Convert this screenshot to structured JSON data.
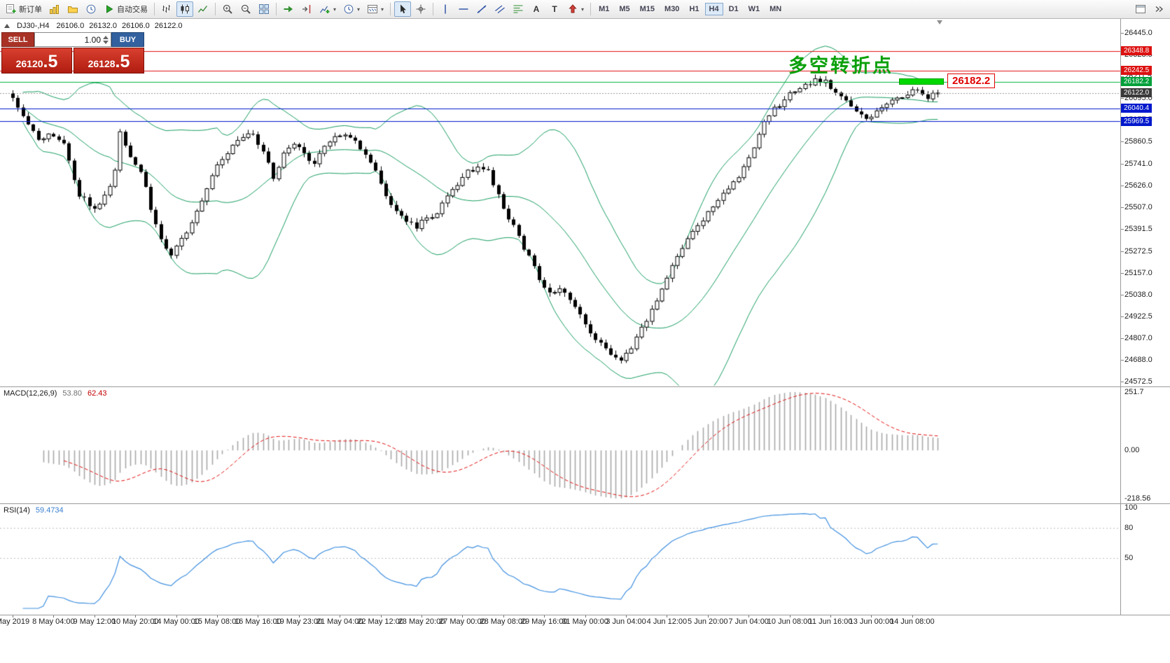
{
  "toolbar": {
    "items": [
      {
        "kind": "button",
        "name": "new-order-button",
        "icon": "neworder",
        "label": "新订单"
      },
      {
        "kind": "icon",
        "name": "new-chart-icon",
        "icon": "newchart"
      },
      {
        "kind": "icon",
        "name": "profiles-icon",
        "icon": "folder"
      },
      {
        "kind": "icon",
        "name": "market-watch-icon",
        "icon": "clock"
      },
      {
        "kind": "button",
        "name": "auto-trading-button",
        "icon": "play",
        "label": "自动交易"
      },
      {
        "kind": "sep"
      },
      {
        "kind": "icon",
        "name": "bar-chart-icon",
        "icon": "ohlcbars"
      },
      {
        "kind": "icon",
        "name": "candlestick-chart-icon",
        "icon": "candles",
        "active": true
      },
      {
        "kind": "icon",
        "name": "line-chart-icon",
        "icon": "linechart"
      },
      {
        "kind": "sep"
      },
      {
        "kind": "icon",
        "name": "zoom-in-icon",
        "icon": "zoomin"
      },
      {
        "kind": "icon",
        "name": "zoom-out-icon",
        "icon": "zoomout"
      },
      {
        "kind": "icon",
        "name": "tile-windows-icon",
        "icon": "tile"
      },
      {
        "kind": "sep"
      },
      {
        "kind": "icon",
        "name": "auto-scroll-icon",
        "icon": "autoscroll"
      },
      {
        "kind": "icon",
        "name": "chart-shift-icon",
        "icon": "chartshift"
      },
      {
        "kind": "icondrop",
        "name": "indicators-icon",
        "icon": "indicator"
      },
      {
        "kind": "icondrop",
        "name": "periods-icon",
        "icon": "clock"
      },
      {
        "kind": "icondrop",
        "name": "templates-icon",
        "icon": "template"
      },
      {
        "kind": "sep"
      },
      {
        "kind": "icon",
        "name": "cursor-icon",
        "icon": "cursor",
        "active": true
      },
      {
        "kind": "icon",
        "name": "crosshair-icon",
        "icon": "crosshair"
      },
      {
        "kind": "sep"
      },
      {
        "kind": "icon",
        "name": "vertical-line-icon",
        "icon": "vline"
      },
      {
        "kind": "icon",
        "name": "horizontal-line-icon",
        "icon": "hline"
      },
      {
        "kind": "icon",
        "name": "trendline-icon",
        "icon": "tline"
      },
      {
        "kind": "icon",
        "name": "channel-icon",
        "icon": "channel"
      },
      {
        "kind": "icon",
        "name": "fibonacci-icon",
        "icon": "fibo"
      },
      {
        "kind": "icon",
        "name": "text-icon",
        "icon": "text",
        "glyph": "A"
      },
      {
        "kind": "icon",
        "name": "label-icon",
        "icon": "text",
        "glyph": "T"
      },
      {
        "kind": "icondrop",
        "name": "arrows-icon",
        "icon": "arrowup"
      },
      {
        "kind": "sep"
      },
      {
        "kind": "tf",
        "name": "timeframe-m1",
        "label": "M1"
      },
      {
        "kind": "tf",
        "name": "timeframe-m5",
        "label": "M5"
      },
      {
        "kind": "tf",
        "name": "timeframe-m15",
        "label": "M15"
      },
      {
        "kind": "tf",
        "name": "timeframe-m30",
        "label": "M30"
      },
      {
        "kind": "tf",
        "name": "timeframe-h1",
        "label": "H1"
      },
      {
        "kind": "tf",
        "name": "timeframe-h4",
        "label": "H4",
        "active": true
      },
      {
        "kind": "tf",
        "name": "timeframe-d1",
        "label": "D1"
      },
      {
        "kind": "tf",
        "name": "timeframe-w1",
        "label": "W1"
      },
      {
        "kind": "tf",
        "name": "timeframe-mn",
        "label": "MN"
      }
    ],
    "right_items": [
      {
        "kind": "icon",
        "name": "dock-windows-icon",
        "icon": "dock"
      },
      {
        "kind": "icon",
        "name": "toolbar-overflow-icon",
        "icon": "more"
      }
    ]
  },
  "chart_header": {
    "symbol": "DJ30-,H4",
    "open": "26106.0",
    "high": "26132.0",
    "low": "26106.0",
    "close": "26122.0"
  },
  "trade_panel": {
    "sell_label": "SELL",
    "buy_label": "BUY",
    "volume": "1.00",
    "sell_price_main": "26120",
    "sell_price_fraction": ".5",
    "buy_price_main": "26128",
    "buy_price_fraction": ".5"
  },
  "annotation": {
    "text": "多空转折点",
    "color": "#0aa00a"
  },
  "price_flag": {
    "text": "26182.2"
  },
  "lines": [
    {
      "name": "resistance-line-upper",
      "label": "26348.8",
      "price": 26348.8,
      "color": "#e01010",
      "badge": "#dd1111",
      "width": 1
    },
    {
      "name": "resistance-line-lower",
      "label": "26242.5",
      "price": 26242.5,
      "color": "#e01010",
      "badge": "#dd1111",
      "width": 1
    },
    {
      "name": "pivot-line-green",
      "label": "26182.2",
      "price": 26182.2,
      "color": "#00b43c",
      "badge": "#00a03a",
      "width": 1
    },
    {
      "name": "current-price-line",
      "label": "26122.0",
      "price": 26122.0,
      "color": "#9a9a9a",
      "badge": "#3a3a3a",
      "width": 1,
      "dash": [
        2,
        2
      ]
    },
    {
      "name": "support-line-upper",
      "label": "26040.4",
      "price": 26040.4,
      "color": "#0018cc",
      "badge": "#0018cc",
      "width": 1
    },
    {
      "name": "support-line-lower",
      "label": "25969.5",
      "price": 25969.5,
      "color": "#0018cc",
      "badge": "#0018cc",
      "width": 1
    }
  ],
  "y_axis_labels": [
    "26445.0",
    "26328.5",
    "26211.5",
    "26095.0",
    "25977.5",
    "25860.5",
    "25741.0",
    "25626.0",
    "25507.0",
    "25391.5",
    "25272.5",
    "25157.0",
    "25038.0",
    "24922.5",
    "24807.0",
    "24688.0",
    "24572.5"
  ],
  "x_axis_labels": [
    {
      "text": "May 2019",
      "i": 0
    },
    {
      "text": "8 May 04:00",
      "i": 8
    },
    {
      "text": "9 May 12:00",
      "i": 16
    },
    {
      "text": "10 May 20:00",
      "i": 24
    },
    {
      "text": "14 May 00:00",
      "i": 32
    },
    {
      "text": "15 May 08:00",
      "i": 40
    },
    {
      "text": "16 May 16:00",
      "i": 48
    },
    {
      "text": "19 May 23:00",
      "i": 56
    },
    {
      "text": "21 May 04:00",
      "i": 64
    },
    {
      "text": "22 May 12:00",
      "i": 72
    },
    {
      "text": "23 May 20:00",
      "i": 80
    },
    {
      "text": "27 May 00:00",
      "i": 88
    },
    {
      "text": "28 May 08:00",
      "i": 96
    },
    {
      "text": "29 May 16:00",
      "i": 104
    },
    {
      "text": "31 May 00:00",
      "i": 112
    },
    {
      "text": "3 Jun 04:00",
      "i": 120
    },
    {
      "text": "4 Jun 12:00",
      "i": 128
    },
    {
      "text": "5 Jun 20:00",
      "i": 136
    },
    {
      "text": "7 Jun 04:00",
      "i": 144
    },
    {
      "text": "10 Jun 08:00",
      "i": 152
    },
    {
      "text": "11 Jun 16:00",
      "i": 160
    },
    {
      "text": "13 Jun 00:00",
      "i": 168
    },
    {
      "text": "14 Jun 08:00",
      "i": 176
    }
  ],
  "macd": {
    "title": "MACD(12,26,9)",
    "value1": "53.80",
    "value2": "62.43",
    "axis_top": "251.7",
    "axis_zero": "0.00",
    "axis_bottom": "-218.56"
  },
  "rsi": {
    "title": "RSI(14)",
    "value": "59.4734",
    "axis": [
      "100",
      "80",
      "50"
    ],
    "levels": [
      80,
      50
    ]
  },
  "colors": {
    "bollinger": "#169c60",
    "candle_up": "#ffffff",
    "candle_down": "#000000",
    "candle_line": "#000000",
    "macd_bar": "#a8a8a8",
    "macd_signal": "#e01010",
    "rsi_line": "#3f8fdf",
    "level_dotted": "#bdbdbd",
    "greenbar": "#00d800",
    "annotation_green": "#0aa00a",
    "flag_red": "#e00000"
  },
  "chart_data": {
    "type": "candlestick",
    "symbol": "DJ30-",
    "timeframe": "H4",
    "candles": 182,
    "visible_price_range": [
      24572.5,
      26445.0
    ],
    "current_ohlc": {
      "open": 26106.0,
      "high": 26132.0,
      "low": 26106.0,
      "close": 26122.0
    },
    "bid": 26120.5,
    "ask": 26128.5,
    "key_levels": [
      26348.8,
      26242.5,
      26182.2,
      26122.0,
      26040.4,
      25969.5
    ],
    "indicators": [
      {
        "name": "Bollinger Bands",
        "period": 20,
        "deviation": 2
      },
      {
        "name": "MACD",
        "params": "12,26,9",
        "values": [
          53.8,
          62.43
        ],
        "axis_range": [
          -218.56,
          251.7
        ]
      },
      {
        "name": "RSI",
        "period": 14,
        "value": 59.4734,
        "levels": [
          80,
          50
        ]
      }
    ],
    "x_start_label": "May 2019",
    "x_end_label": "14 Jun 08:00",
    "price_waypoints": [
      [
        0,
        26090
      ],
      [
        2,
        25990
      ],
      [
        5,
        25880
      ],
      [
        8,
        25895
      ],
      [
        10,
        25840
      ],
      [
        13,
        25580
      ],
      [
        16,
        25500
      ],
      [
        18,
        25565
      ],
      [
        20,
        25705
      ],
      [
        21,
        25920
      ],
      [
        23,
        25765
      ],
      [
        25,
        25705
      ],
      [
        27,
        25505
      ],
      [
        29,
        25335
      ],
      [
        31,
        25265
      ],
      [
        33,
        25335
      ],
      [
        35,
        25435
      ],
      [
        37,
        25545
      ],
      [
        39,
        25685
      ],
      [
        42,
        25805
      ],
      [
        45,
        25885
      ],
      [
        47,
        25905
      ],
      [
        49,
        25795
      ],
      [
        51,
        25675
      ],
      [
        53,
        25785
      ],
      [
        55,
        25855
      ],
      [
        57,
        25795
      ],
      [
        59,
        25745
      ],
      [
        61,
        25825
      ],
      [
        63,
        25885
      ],
      [
        65,
        25905
      ],
      [
        67,
        25865
      ],
      [
        69,
        25785
      ],
      [
        71,
        25695
      ],
      [
        73,
        25575
      ],
      [
        75,
        25485
      ],
      [
        77,
        25435
      ],
      [
        79,
        25405
      ],
      [
        81,
        25445
      ],
      [
        83,
        25485
      ],
      [
        85,
        25555
      ],
      [
        87,
        25625
      ],
      [
        89,
        25695
      ],
      [
        91,
        25725
      ],
      [
        93,
        25695
      ],
      [
        95,
        25575
      ],
      [
        97,
        25455
      ],
      [
        99,
        25345
      ],
      [
        101,
        25235
      ],
      [
        103,
        25125
      ],
      [
        105,
        25045
      ],
      [
        107,
        25075
      ],
      [
        109,
        25025
      ],
      [
        111,
        24935
      ],
      [
        113,
        24845
      ],
      [
        115,
        24775
      ],
      [
        117,
        24715
      ],
      [
        119,
        24690
      ],
      [
        121,
        24745
      ],
      [
        123,
        24855
      ],
      [
        125,
        24955
      ],
      [
        127,
        25075
      ],
      [
        129,
        25185
      ],
      [
        131,
        25285
      ],
      [
        133,
        25385
      ],
      [
        135,
        25445
      ],
      [
        137,
        25515
      ],
      [
        139,
        25575
      ],
      [
        141,
        25645
      ],
      [
        143,
        25715
      ],
      [
        145,
        25825
      ],
      [
        147,
        25955
      ],
      [
        149,
        26035
      ],
      [
        151,
        26085
      ],
      [
        153,
        26135
      ],
      [
        155,
        26165
      ],
      [
        157,
        26195
      ],
      [
        159,
        26185
      ],
      [
        161,
        26125
      ],
      [
        163,
        26085
      ],
      [
        165,
        26035
      ],
      [
        167,
        25995
      ],
      [
        169,
        26015
      ],
      [
        171,
        26065
      ],
      [
        173,
        26095
      ],
      [
        175,
        26115
      ],
      [
        177,
        26135
      ],
      [
        179,
        26105
      ],
      [
        181,
        26122
      ]
    ]
  }
}
